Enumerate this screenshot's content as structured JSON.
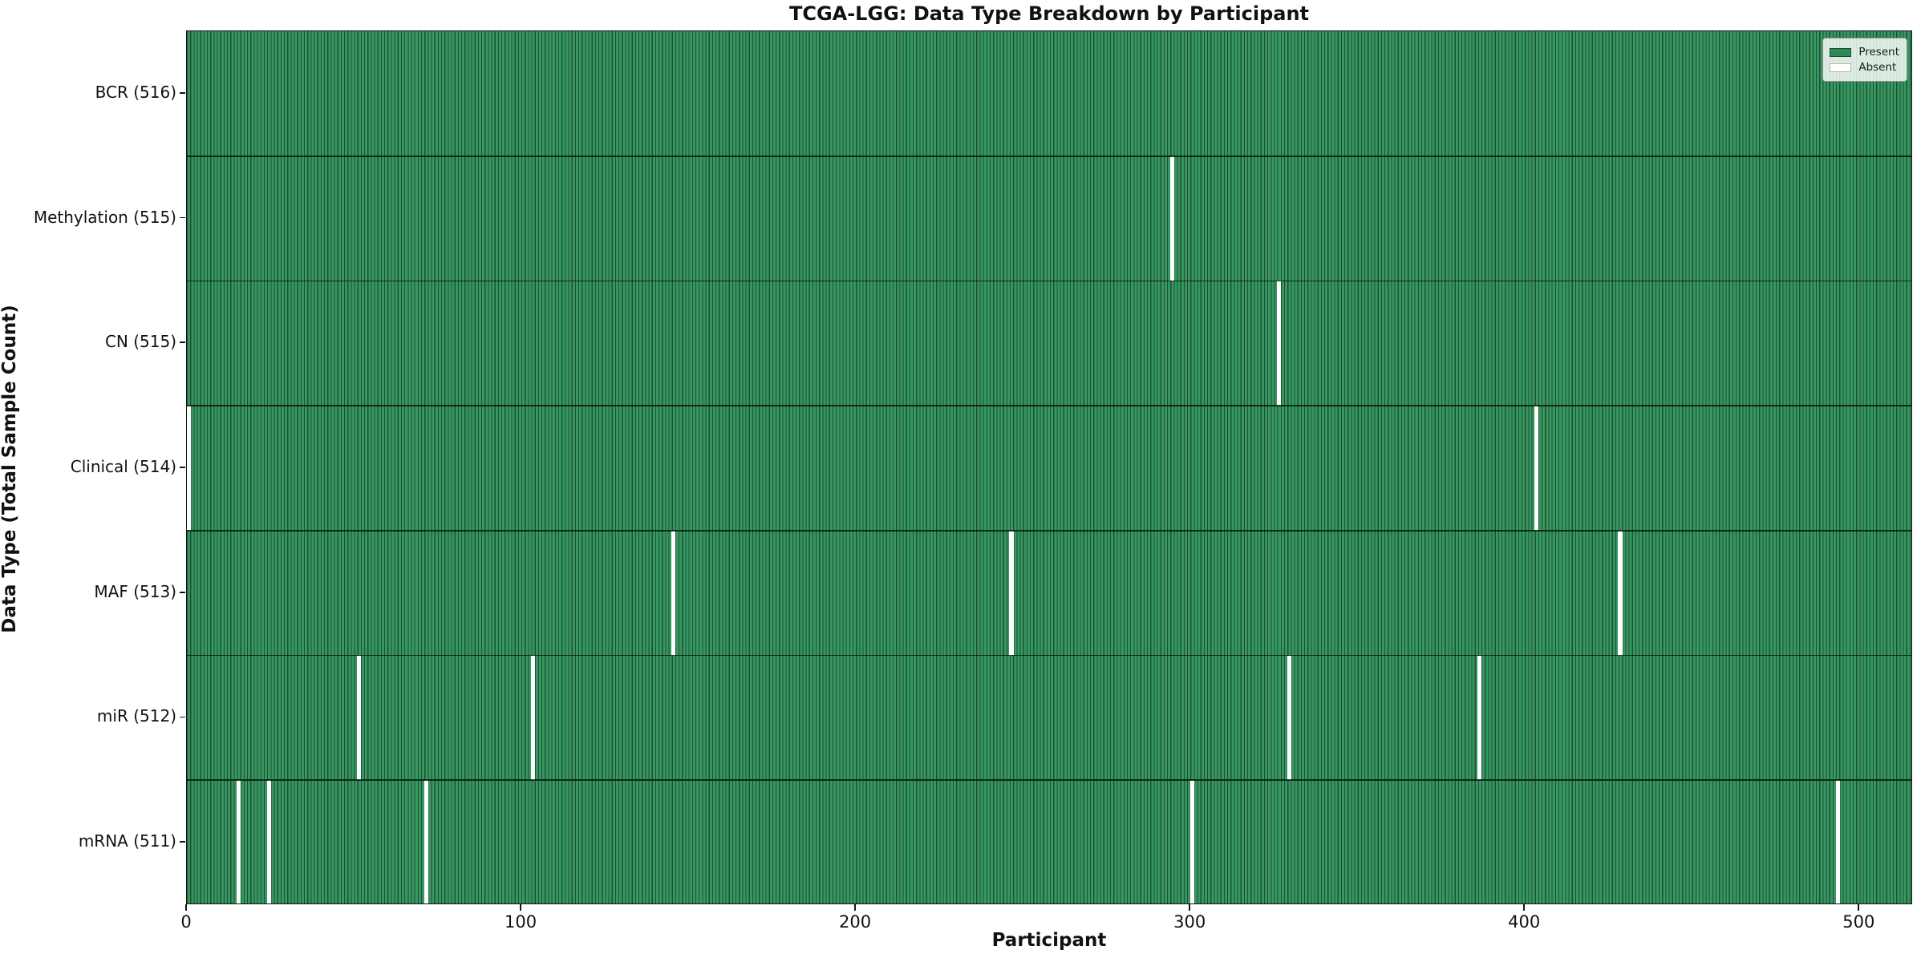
{
  "chart_data": {
    "type": "heatmap",
    "title": "TCGA-LGG: Data Type Breakdown by Participant",
    "xlabel": "Participant",
    "ylabel": "Data Type (Total Sample Count)",
    "x_range": [
      0,
      516
    ],
    "x_ticks": [
      0,
      100,
      200,
      300,
      400,
      500
    ],
    "n_participants": 516,
    "legend_position": "upper right",
    "legend": [
      {
        "label": "Present",
        "color": "#2e8b57"
      },
      {
        "label": "Absent",
        "color": "#ffffff"
      }
    ],
    "rows": [
      {
        "label": "BCR (516)",
        "data_type": "BCR",
        "total": 516,
        "absent_participants": []
      },
      {
        "label": "Methylation (515)",
        "data_type": "Methylation",
        "total": 515,
        "absent_participants": [
          294
        ]
      },
      {
        "label": "CN (515)",
        "data_type": "CN",
        "total": 515,
        "absent_participants": [
          326
        ]
      },
      {
        "label": "Clinical (514)",
        "data_type": "Clinical",
        "total": 514,
        "absent_participants": [
          0,
          403
        ]
      },
      {
        "label": "MAF (513)",
        "data_type": "MAF",
        "total": 513,
        "absent_participants": [
          145,
          246,
          428
        ]
      },
      {
        "label": "miR (512)",
        "data_type": "miR",
        "total": 512,
        "absent_participants": [
          51,
          103,
          329,
          386
        ]
      },
      {
        "label": "mRNA (511)",
        "data_type": "mRNA",
        "total": 511,
        "absent_participants": [
          15,
          24,
          71,
          300,
          493
        ]
      }
    ],
    "colors": {
      "present_fill": "#379762",
      "bar_edge": "#1d5031",
      "absent_fill": "#ffffff",
      "row_divider": "#10291a",
      "spine": "#141414"
    }
  }
}
